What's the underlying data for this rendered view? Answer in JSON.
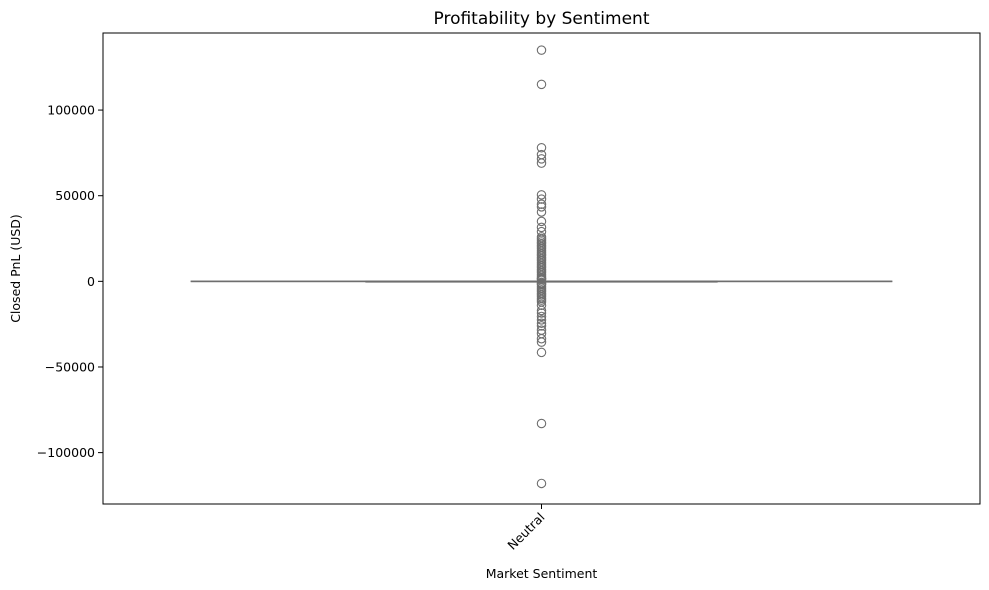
{
  "chart_data": {
    "type": "box",
    "title": "Profitability by Sentiment",
    "xlabel": "Market Sentiment",
    "ylabel": "Closed PnL (USD)",
    "categories": [
      "Neutral"
    ],
    "ylim": [
      -130000,
      145000
    ],
    "yticks": [
      100000,
      50000,
      0,
      -50000,
      -100000
    ],
    "ytick_labels": [
      "100000",
      "50000",
      "0",
      "−50000",
      "−100000"
    ],
    "grid": false,
    "box": {
      "category": "Neutral",
      "q1": 0,
      "median": 0,
      "q3": 0,
      "whisker_low": 0,
      "whisker_high": 0,
      "outliers": [
        135000,
        115000,
        78000,
        74000,
        71500,
        69000,
        50500,
        48000,
        45000,
        43500,
        40500,
        35000,
        31500,
        29000,
        26000,
        25000,
        24000,
        23000,
        22000,
        21000,
        20000,
        19000,
        18000,
        17000,
        16000,
        15000,
        14000,
        13000,
        12000,
        11000,
        10000,
        9000,
        8000,
        7000,
        6000,
        5000,
        4000,
        3000,
        2000,
        1500,
        1000,
        -1000,
        -1500,
        -2000,
        -3000,
        -4000,
        -5000,
        -6000,
        -7000,
        -8000,
        -9000,
        -10000,
        -11000,
        -12000,
        -14000,
        -17000,
        -18500,
        -20500,
        -22500,
        -24500,
        -26000,
        -28500,
        -30500,
        -33500,
        -35500,
        -41500,
        -83000,
        -118000
      ]
    },
    "colors": {
      "box_line": "#6e6e6e",
      "outlier_edge": "#6e6e6e"
    }
  }
}
